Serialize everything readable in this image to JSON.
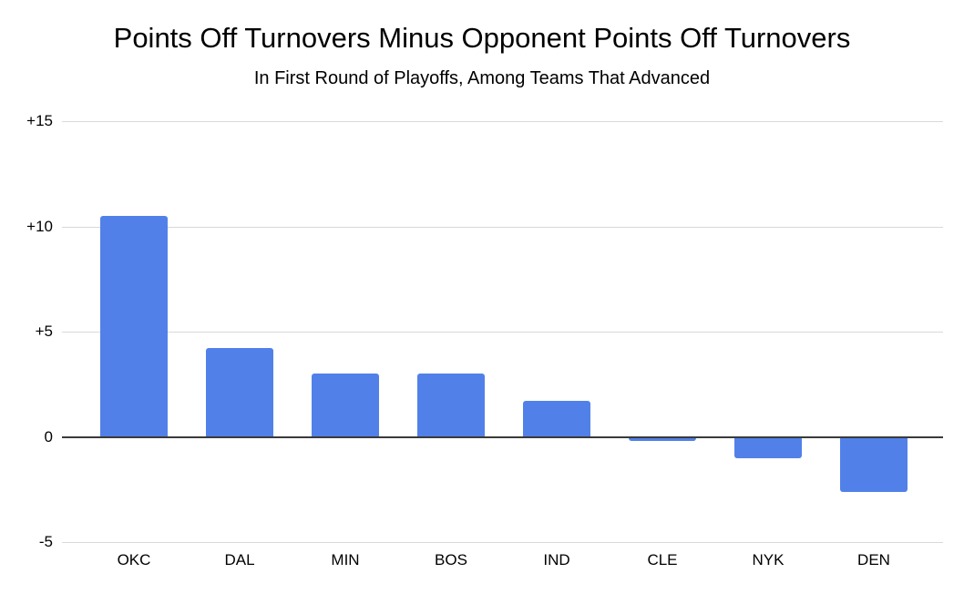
{
  "chart_data": {
    "type": "bar",
    "title": "Points Off Turnovers Minus Opponent Points Off Turnovers",
    "subtitle": "In First Round of Playoffs, Among Teams That Advanced",
    "categories": [
      "OKC",
      "DAL",
      "MIN",
      "BOS",
      "IND",
      "CLE",
      "NYK",
      "DEN"
    ],
    "values": [
      10.5,
      4.2,
      3.0,
      3.0,
      1.7,
      -0.2,
      -1.0,
      -2.6
    ],
    "xlabel": "",
    "ylabel": "",
    "ylim": [
      -5,
      15
    ],
    "yticks": [
      {
        "value": 15,
        "label": "+15"
      },
      {
        "value": 10,
        "label": "+10"
      },
      {
        "value": 5,
        "label": "+5"
      },
      {
        "value": 0,
        "label": "0"
      },
      {
        "value": -5,
        "label": "-5"
      }
    ],
    "grid": "horizontal",
    "legend": "none",
    "bar_color": "#5181e8",
    "gridline_color": "#d9d9d9",
    "zero_line_color": "#3a3a3a",
    "text_color": "#000000",
    "background_color": "#ffffff"
  }
}
